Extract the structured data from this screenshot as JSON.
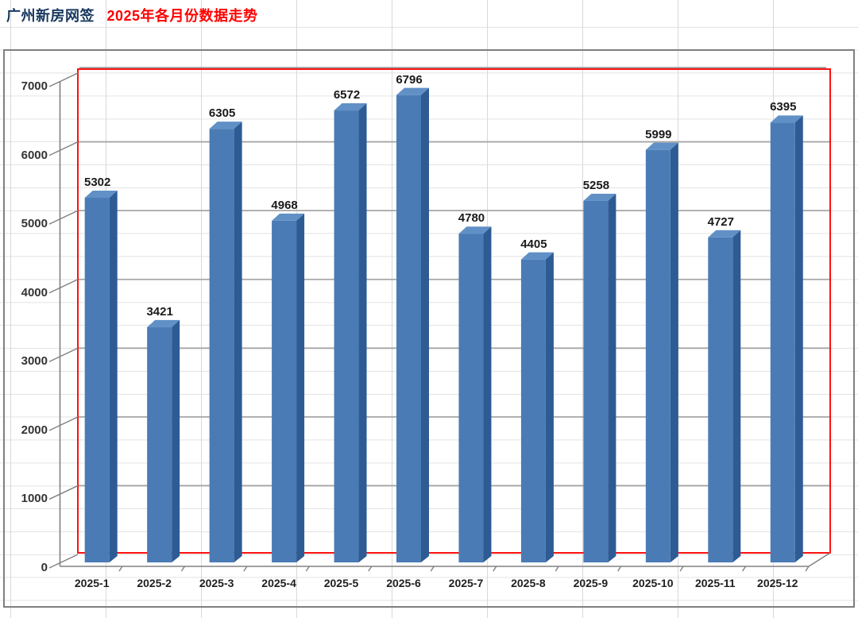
{
  "sheet_title": {
    "part1": "广州新房网签",
    "part2": "2025年各月份数据走势"
  },
  "chart_data": {
    "type": "bar",
    "style": "3d-column",
    "title": "广州新房网签 2025年各月份数据走势",
    "categories": [
      "2025-1",
      "2025-2",
      "2025-3",
      "2025-4",
      "2025-5",
      "2025-6",
      "2025-7",
      "2025-8",
      "2025-9",
      "2025-10",
      "2025-11",
      "2025-12"
    ],
    "values": [
      5302,
      3421,
      6305,
      4968,
      6572,
      6796,
      4780,
      4405,
      5258,
      5999,
      4727,
      6395
    ],
    "data_labels": true,
    "legend": "none",
    "xlabel": "",
    "ylabel": "",
    "ylim": [
      0,
      7000
    ],
    "yticks": [
      0,
      1000,
      2000,
      3000,
      4000,
      5000,
      6000,
      7000
    ],
    "grid": true,
    "colors": {
      "bar_front": "#4a7bb5",
      "bar_top": "#6090c6",
      "bar_side": "#2e5b94",
      "plot_border": "#fe1010",
      "axis_gray": "#808080",
      "major_grid": "#a6a6a6",
      "wall_band": "#9e9e9e",
      "title_navy": "#17375d",
      "title_red": "#fe0000"
    }
  }
}
